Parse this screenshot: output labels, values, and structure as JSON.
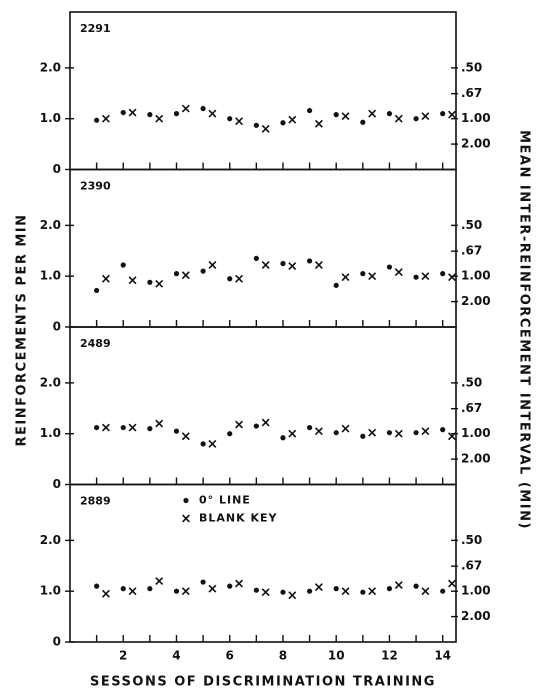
{
  "figure": {
    "ylabel": "REINFORCEMENTS PER MIN",
    "y2label": "MEAN INTER-REINFORCEMENT INTERVAL (MIN)",
    "xlabel": "SESSONS OF DISCRIMINATION TRAINING"
  },
  "chart_data": [
    {
      "type": "scatter",
      "title": "2291",
      "xlim": [
        0,
        14.5
      ],
      "ylim": [
        0,
        3.1
      ],
      "xticks": [
        2,
        4,
        6,
        8,
        10,
        12,
        14
      ],
      "minor_xticks": [
        1,
        3,
        5,
        7,
        9,
        11,
        13
      ],
      "show_xtick_labels": false,
      "yticks": [
        0,
        {
          "value": 1,
          "label": "1.0"
        },
        {
          "value": 2,
          "label": "2.0"
        }
      ],
      "y2scale": "reciprocal",
      "y2ticks": [
        {
          "value": 0.5,
          "label": ".50"
        },
        {
          "value": 0.67,
          "label": ".67"
        },
        {
          "value": 1,
          "label": "1.00"
        },
        {
          "value": 2,
          "label": "2.00"
        }
      ],
      "legend": false,
      "series": [
        {
          "name": "0° LINE",
          "marker": "dot",
          "color": "#111",
          "x": [
            1,
            2,
            3,
            4,
            5,
            6,
            7,
            8,
            9,
            10,
            11,
            12,
            13,
            14
          ],
          "values": [
            0.97,
            1.12,
            1.08,
            1.1,
            1.2,
            1.0,
            0.87,
            0.92,
            1.16,
            1.08,
            0.93,
            1.1,
            1.0,
            1.1
          ]
        },
        {
          "name": "BLANK KEY",
          "marker": "x",
          "color": "#111",
          "x": [
            1.35,
            2.35,
            3.35,
            4.35,
            5.35,
            6.35,
            7.35,
            8.35,
            9.35,
            10.35,
            11.35,
            12.35,
            13.35,
            14.35
          ],
          "values": [
            1.0,
            1.12,
            1.0,
            1.2,
            1.1,
            0.95,
            0.8,
            0.98,
            0.9,
            1.05,
            1.1,
            1.0,
            1.05,
            1.08
          ]
        }
      ]
    },
    {
      "type": "scatter",
      "title": "2390",
      "xlim": [
        0,
        14.5
      ],
      "ylim": [
        0,
        3.1
      ],
      "xticks": [
        2,
        4,
        6,
        8,
        10,
        12,
        14
      ],
      "minor_xticks": [
        1,
        3,
        5,
        7,
        9,
        11,
        13
      ],
      "show_xtick_labels": false,
      "yticks": [
        0,
        {
          "value": 1,
          "label": "1.0"
        },
        {
          "value": 2,
          "label": "2.0"
        }
      ],
      "y2scale": "reciprocal",
      "y2ticks": [
        {
          "value": 0.5,
          "label": ".50"
        },
        {
          "value": 0.67,
          "label": ".67"
        },
        {
          "value": 1,
          "label": "1.00"
        },
        {
          "value": 2,
          "label": "2.00"
        }
      ],
      "legend": false,
      "series": [
        {
          "name": "0° LINE",
          "marker": "dot",
          "color": "#111",
          "x": [
            1,
            2,
            3,
            4,
            5,
            6,
            7,
            8,
            9,
            10,
            11,
            12,
            13,
            14
          ],
          "values": [
            0.72,
            1.22,
            0.88,
            1.05,
            1.1,
            0.95,
            1.35,
            1.25,
            1.3,
            0.82,
            1.05,
            1.18,
            0.98,
            1.05
          ]
        },
        {
          "name": "BLANK KEY",
          "marker": "x",
          "color": "#111",
          "x": [
            1.35,
            2.35,
            3.35,
            4.35,
            5.35,
            6.35,
            7.35,
            8.35,
            9.35,
            10.35,
            11.35,
            12.35,
            13.35,
            14.35
          ],
          "values": [
            0.95,
            0.92,
            0.85,
            1.02,
            1.22,
            0.95,
            1.22,
            1.2,
            1.22,
            0.98,
            1.0,
            1.08,
            1.0,
            0.98
          ]
        }
      ]
    },
    {
      "type": "scatter",
      "title": "2489",
      "xlim": [
        0,
        14.5
      ],
      "ylim": [
        0,
        3.1
      ],
      "xticks": [
        2,
        4,
        6,
        8,
        10,
        12,
        14
      ],
      "minor_xticks": [
        1,
        3,
        5,
        7,
        9,
        11,
        13
      ],
      "show_xtick_labels": false,
      "yticks": [
        0,
        {
          "value": 1,
          "label": "1.0"
        },
        {
          "value": 2,
          "label": "2.0"
        }
      ],
      "y2scale": "reciprocal",
      "y2ticks": [
        {
          "value": 0.5,
          "label": ".50"
        },
        {
          "value": 0.67,
          "label": ".67"
        },
        {
          "value": 1,
          "label": "1.00"
        },
        {
          "value": 2,
          "label": "2.00"
        }
      ],
      "legend": false,
      "series": [
        {
          "name": "0° LINE",
          "marker": "dot",
          "color": "#111",
          "x": [
            1,
            2,
            3,
            4,
            5,
            6,
            7,
            8,
            9,
            10,
            11,
            12,
            13,
            14
          ],
          "values": [
            1.12,
            1.12,
            1.1,
            1.05,
            0.8,
            1.0,
            1.15,
            0.92,
            1.12,
            1.02,
            0.95,
            1.02,
            1.02,
            1.08
          ]
        },
        {
          "name": "BLANK KEY",
          "marker": "x",
          "color": "#111",
          "x": [
            1.35,
            2.35,
            3.35,
            4.35,
            5.35,
            6.35,
            7.35,
            8.35,
            9.35,
            10.35,
            11.35,
            12.35,
            13.35,
            14.35
          ],
          "values": [
            1.12,
            1.12,
            1.2,
            0.95,
            0.8,
            1.18,
            1.22,
            1.0,
            1.05,
            1.1,
            1.02,
            1.0,
            1.05,
            0.95
          ]
        }
      ]
    },
    {
      "type": "scatter",
      "title": "2889",
      "xlim": [
        0,
        14.5
      ],
      "ylim": [
        0,
        3.1
      ],
      "xticks": [
        2,
        4,
        6,
        8,
        10,
        12,
        14
      ],
      "minor_xticks": [
        1,
        3,
        5,
        7,
        9,
        11,
        13
      ],
      "show_xtick_labels": true,
      "yticks": [
        0,
        {
          "value": 1,
          "label": "1.0"
        },
        {
          "value": 2,
          "label": "2.0"
        }
      ],
      "y2scale": "reciprocal",
      "y2ticks": [
        {
          "value": 0.5,
          "label": ".50"
        },
        {
          "value": 0.67,
          "label": ".67"
        },
        {
          "value": 1,
          "label": "1.00"
        },
        {
          "value": 2,
          "label": "2.00"
        }
      ],
      "legend": true,
      "series": [
        {
          "name": "0° LINE",
          "marker": "dot",
          "color": "#111",
          "x": [
            1,
            2,
            3,
            4,
            5,
            6,
            7,
            8,
            9,
            10,
            11,
            12,
            13,
            14
          ],
          "values": [
            1.1,
            1.05,
            1.05,
            1.0,
            1.18,
            1.1,
            1.02,
            0.98,
            1.0,
            1.05,
            0.98,
            1.05,
            1.1,
            1.0
          ]
        },
        {
          "name": "BLANK KEY",
          "marker": "x",
          "color": "#111",
          "x": [
            1.35,
            2.35,
            3.35,
            4.35,
            5.35,
            6.35,
            7.35,
            8.35,
            9.35,
            10.35,
            11.35,
            12.35,
            13.35,
            14.35
          ],
          "values": [
            0.95,
            1.0,
            1.2,
            1.0,
            1.05,
            1.15,
            0.98,
            0.92,
            1.08,
            1.0,
            1.0,
            1.12,
            1.0,
            1.15
          ]
        }
      ]
    }
  ]
}
